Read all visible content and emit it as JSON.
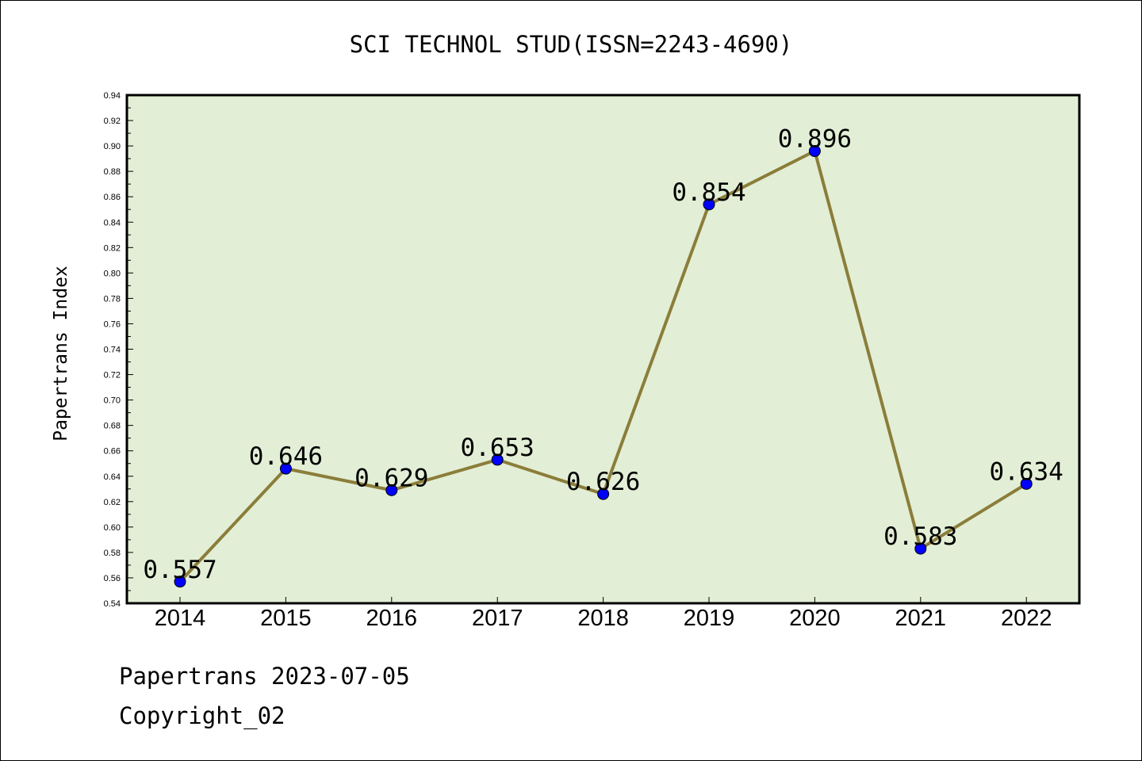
{
  "chart_data": {
    "type": "line",
    "title": "SCI TECHNOL STUD(ISSN=2243-4690)",
    "xlabel": "",
    "ylabel": "Papertrans Index",
    "categories": [
      "2014",
      "2015",
      "2016",
      "2017",
      "2018",
      "2019",
      "2020",
      "2021",
      "2022"
    ],
    "values": [
      0.557,
      0.646,
      0.629,
      0.653,
      0.626,
      0.854,
      0.896,
      0.583,
      0.634
    ],
    "data_labels": [
      "0.557",
      "0.646",
      "0.629",
      "0.653",
      "0.626",
      "0.854",
      "0.896",
      "0.583",
      "0.634"
    ],
    "ylim": [
      0.54,
      0.94
    ],
    "yticks": [
      "0.54",
      "0.56",
      "0.58",
      "0.60",
      "0.62",
      "0.64",
      "0.66",
      "0.68",
      "0.70",
      "0.72",
      "0.74",
      "0.76",
      "0.78",
      "0.80",
      "0.82",
      "0.84",
      "0.86",
      "0.88",
      "0.90",
      "0.92",
      "0.94"
    ],
    "grid": false,
    "colors": {
      "plot_background": "#e2efd6",
      "line": "#8b7d3a",
      "marker": "#0000ff"
    }
  },
  "footer": {
    "line1": "Papertrans 2023-07-05",
    "line2": "Copyright_02"
  }
}
